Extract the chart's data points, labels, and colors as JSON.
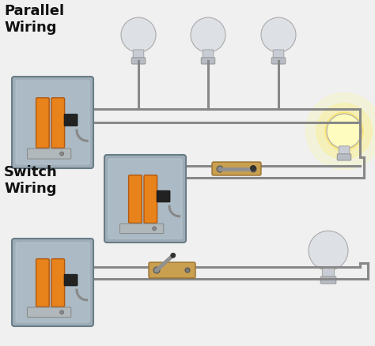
{
  "parallel_label": "Parallel\nWiring",
  "switch_label": "Switch\nWiring",
  "bg_color": "#f0f0f0",
  "wire_color": "#888888",
  "box_face": "#9eadb8",
  "box_edge": "#6a7d88",
  "box_inner": "#b8c8d0",
  "orange": "#e8821a",
  "orange_edge": "#b05810",
  "wood": "#c8a050",
  "wood_edge": "#9a7030",
  "label_fs": 13,
  "label_color": "#111111",
  "bulb_off": "#dde0e5",
  "bulb_neck": "#c8cdd5",
  "bulb_lit_globe": "#fffcc0",
  "bulb_lit_glow": "#ffee88"
}
